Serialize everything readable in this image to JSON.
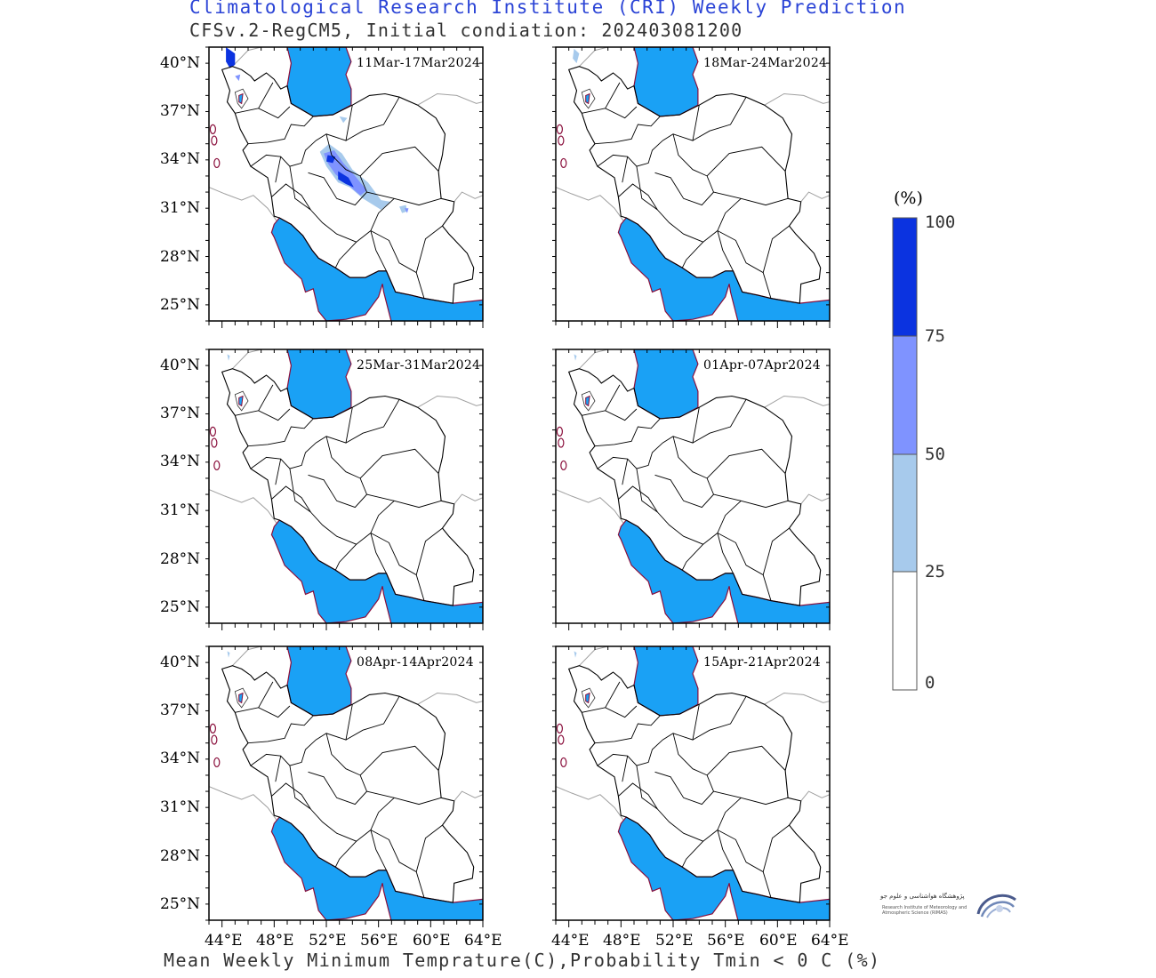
{
  "header": {
    "title": "Climatological Research Institute (CRI) Weekly Prediction",
    "subtitle": "CFSv.2-RegCM5, Initial condiation: 202403081200"
  },
  "footer": {
    "caption": "Mean Weekly Minimum Temprature(C),Probability Tmin < 0 C (%)"
  },
  "lat_labels": [
    "40°N",
    "37°N",
    "34°N",
    "31°N",
    "28°N",
    "25°N"
  ],
  "lon_labels": [
    "44°E",
    "48°E",
    "52°E",
    "56°E",
    "60°E",
    "64°E"
  ],
  "panels": [
    {
      "period": "11Mar-17Mar2024",
      "frost": "high"
    },
    {
      "period": "18Mar-24Mar2024",
      "frost": "low"
    },
    {
      "period": "25Mar-31Mar2024",
      "frost": "minimal"
    },
    {
      "period": "01Apr-07Apr2024",
      "frost": "minimal"
    },
    {
      "period": "08Apr-14Apr2024",
      "frost": "minimal"
    },
    {
      "period": "15Apr-21Apr2024",
      "frost": "minimal"
    }
  ],
  "legend": {
    "unit": "(%)",
    "levels": [
      "100",
      "75",
      "50",
      "25",
      "0"
    ],
    "colors": [
      "#0b33e0",
      "#7f93ff",
      "#a7caec",
      "#ffffff"
    ]
  },
  "colors": {
    "water": "#1aa1f5",
    "coast": "#8a0f3c",
    "border": "#000000",
    "neighbor": "#a0a0a0"
  },
  "logo": {
    "line1": "پژوهشگاه هواشناسی و علوم جو",
    "line2": "Research Institute of Meteorology and Atmospheric Science (RIMAS)"
  }
}
